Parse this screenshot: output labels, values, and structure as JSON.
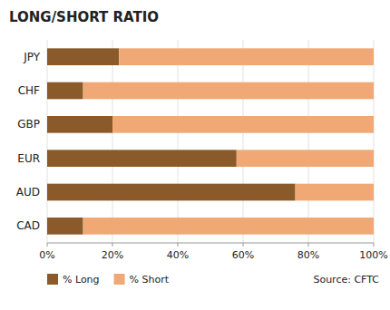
{
  "chart_data": {
    "type": "bar",
    "orientation": "horizontal",
    "stacked": true,
    "title": "LONG/SHORT RATIO",
    "categories": [
      "JPY",
      "CHF",
      "GBP",
      "EUR",
      "AUD",
      "CAD"
    ],
    "series": [
      {
        "name": "% Long",
        "color": "#8B5A2B",
        "values": [
          22,
          11,
          20,
          58,
          76,
          11
        ]
      },
      {
        "name": "% Short",
        "color": "#F0A875",
        "values": [
          78,
          89,
          80,
          42,
          24,
          89
        ]
      }
    ],
    "xlim": [
      0,
      100
    ],
    "xticks": [
      {
        "value": 0,
        "label": "0%"
      },
      {
        "value": 20,
        "label": "20%"
      },
      {
        "value": 40,
        "label": "40%"
      },
      {
        "value": 60,
        "label": "60%"
      },
      {
        "value": 80,
        "label": "80%"
      },
      {
        "value": 100,
        "label": "100%"
      }
    ],
    "grid": true,
    "legend": "bottom",
    "annotations": [
      "Source: CFTC"
    ]
  }
}
